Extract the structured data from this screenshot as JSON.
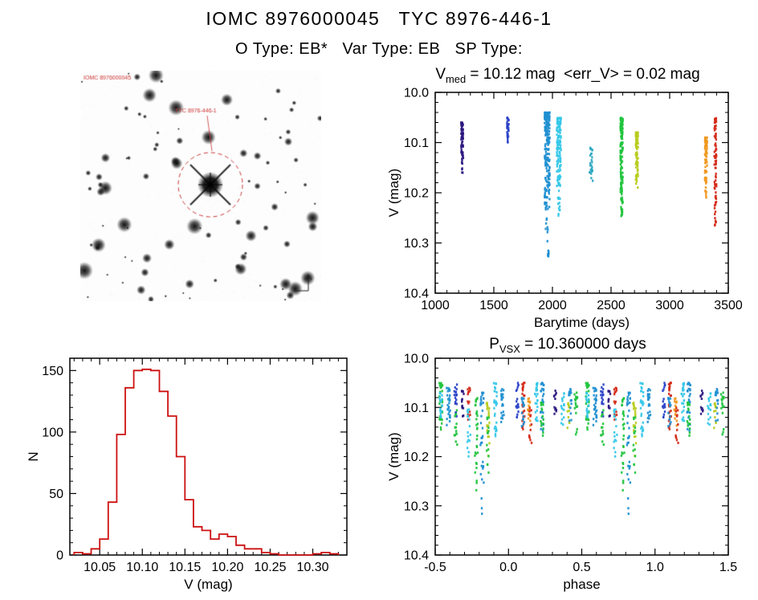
{
  "page": {
    "title": "IOMC 8976000045   TYC 8976-446-1",
    "subtitle": "O Type: EB*   Var Type: EB   SP Type:"
  },
  "finding_chart": {
    "survey_label": "IOMC 8976000045",
    "target_label": "TYC 8976-446-1",
    "circle_color": "#cc3333"
  },
  "palette": {
    "purple": "#2c1880",
    "navy": "#2a41c8",
    "cyan": "#1f8fd0",
    "cyanL": "#35c8e8",
    "teal": "#2fa8c0",
    "green": "#22c43e",
    "yellow": "#b8cc20",
    "orange": "#f09820",
    "red": "#d42a18"
  },
  "chart_data": [
    {
      "id": "lightcurve",
      "type": "scatter",
      "title": {
        "pre": "V",
        "sub": "med",
        "rest": " = 10.12 mag  <err_V> = 0.02 mag"
      },
      "xlabel": "Barytime (days)",
      "ylabel": "V (mag)",
      "xlim": [
        1000,
        3500
      ],
      "yrange": {
        "top": 10.0,
        "bottom": 10.4
      },
      "xticks": [
        1000,
        1500,
        2000,
        2500,
        3000,
        3500
      ],
      "xtick_labels": [
        "1000",
        "1500",
        "2000",
        "2500",
        "3000",
        "3500"
      ],
      "yticks": [
        10.0,
        10.1,
        10.2,
        10.3,
        10.4
      ],
      "ytick_labels": [
        "10.0",
        "10.1",
        "10.2",
        "10.3",
        "10.4"
      ],
      "xminor": 100,
      "yminor": 0.02,
      "clusters": [
        {
          "x": 1230,
          "dx": 9,
          "v0": 10.06,
          "v1": 10.14,
          "n": 60,
          "c": "purple",
          "tail": 10.16
        },
        {
          "x": 1620,
          "dx": 8,
          "v0": 10.05,
          "v1": 10.1,
          "n": 34,
          "c": "navy"
        },
        {
          "x": 1955,
          "dx": 22,
          "v0": 10.04,
          "v1": 10.23,
          "n": 190,
          "c": "cyan",
          "tail": 10.33
        },
        {
          "x": 2055,
          "dx": 18,
          "v0": 10.05,
          "v1": 10.19,
          "n": 130,
          "c": "cyanL",
          "tail": 10.26
        },
        {
          "x": 2330,
          "dx": 14,
          "v0": 10.11,
          "v1": 10.18,
          "n": 26,
          "c": "teal"
        },
        {
          "x": 2590,
          "dx": 11,
          "v0": 10.05,
          "v1": 10.22,
          "n": 130,
          "c": "green",
          "tail": 10.25
        },
        {
          "x": 2720,
          "dx": 10,
          "v0": 10.08,
          "v1": 10.19,
          "n": 85,
          "c": "yellow"
        },
        {
          "x": 3310,
          "dx": 10,
          "v0": 10.09,
          "v1": 10.19,
          "n": 60,
          "c": "orange",
          "tail": 10.21
        },
        {
          "x": 3390,
          "dx": 9,
          "v0": 10.05,
          "v1": 10.24,
          "n": 72,
          "c": "red",
          "tail": 10.27
        }
      ]
    },
    {
      "id": "histogram",
      "type": "hist",
      "xlabel": "V (mag)",
      "ylabel": "N",
      "xlim": [
        10.015,
        10.34
      ],
      "yrange": {
        "top": 160,
        "bottom": 0
      },
      "xticks": [
        10.05,
        10.1,
        10.15,
        10.2,
        10.25,
        10.3
      ],
      "xtick_labels": [
        "10.05",
        "10.10",
        "10.15",
        "10.20",
        "10.25",
        "10.30"
      ],
      "yticks": [
        0,
        50,
        100,
        150
      ],
      "ytick_labels": [
        "0",
        "50",
        "100",
        "150"
      ],
      "xminor": 0.01,
      "yminor": 10,
      "bin_start": 10.02,
      "bin_width": 0.01,
      "values": [
        2,
        1,
        5,
        13,
        43,
        98,
        136,
        150,
        151,
        150,
        133,
        113,
        80,
        45,
        23,
        20,
        13,
        17,
        15,
        8,
        5,
        5,
        2,
        1,
        0,
        0,
        0,
        0,
        1,
        2,
        1
      ],
      "color": "#cc1111"
    },
    {
      "id": "phase",
      "type": "scatter",
      "title": {
        "pre": "P",
        "sub": "VSX",
        "rest": " = 10.360000 days"
      },
      "xlabel": "phase",
      "ylabel": "V (mag)",
      "xlim": [
        -0.5,
        1.5
      ],
      "yrange": {
        "top": 10.0,
        "bottom": 10.4
      },
      "xticks": [
        -0.5,
        0.0,
        0.5,
        1.0,
        1.5
      ],
      "xtick_labels": [
        "-0.5",
        "0.0",
        "0.5",
        "1.0",
        "1.5"
      ],
      "yticks": [
        10.0,
        10.1,
        10.2,
        10.3,
        10.4
      ],
      "ytick_labels": [
        "10.0",
        "10.1",
        "10.2",
        "10.3",
        "10.4"
      ],
      "xminor": 0.1,
      "yminor": 0.02,
      "duplicate_offset": 1.0,
      "clusters": [
        {
          "x": -0.46,
          "dx": 0.012,
          "v0": 10.05,
          "v1": 10.15,
          "n": 32,
          "c": "green"
        },
        {
          "x": -0.46,
          "dx": 0.01,
          "v0": 10.07,
          "v1": 10.12,
          "n": 18,
          "c": "cyanL"
        },
        {
          "x": -0.41,
          "dx": 0.012,
          "v0": 10.06,
          "v1": 10.14,
          "n": 28,
          "c": "cyan"
        },
        {
          "x": -0.36,
          "dx": 0.01,
          "v0": 10.05,
          "v1": 10.12,
          "n": 20,
          "c": "navy"
        },
        {
          "x": -0.36,
          "dx": 0.01,
          "v0": 10.1,
          "v1": 10.18,
          "n": 14,
          "c": "green"
        },
        {
          "x": -0.31,
          "dx": 0.009,
          "v0": 10.06,
          "v1": 10.12,
          "n": 14,
          "c": "purple"
        },
        {
          "x": -0.27,
          "dx": 0.009,
          "v0": 10.06,
          "v1": 10.13,
          "n": 16,
          "c": "red"
        },
        {
          "x": -0.27,
          "dx": 0.011,
          "v0": 10.1,
          "v1": 10.2,
          "n": 18,
          "c": "cyanL"
        },
        {
          "x": -0.22,
          "dx": 0.011,
          "v0": 10.08,
          "v1": 10.24,
          "n": 28,
          "c": "green",
          "tail": 10.27
        },
        {
          "x": -0.18,
          "dx": 0.011,
          "v0": 10.07,
          "v1": 10.26,
          "n": 32,
          "c": "cyan",
          "tail": 10.32
        },
        {
          "x": -0.14,
          "dx": 0.01,
          "v0": 10.09,
          "v1": 10.2,
          "n": 22,
          "c": "yellow"
        },
        {
          "x": -0.14,
          "dx": 0.01,
          "v0": 10.12,
          "v1": 10.25,
          "n": 15,
          "c": "green"
        },
        {
          "x": -0.09,
          "dx": 0.011,
          "v0": 10.05,
          "v1": 10.16,
          "n": 28,
          "c": "cyanL"
        },
        {
          "x": -0.04,
          "dx": 0.01,
          "v0": 10.06,
          "v1": 10.13,
          "n": 22,
          "c": "cyan"
        },
        {
          "x": 0.06,
          "dx": 0.01,
          "v0": 10.05,
          "v1": 10.12,
          "n": 18,
          "c": "navy"
        },
        {
          "x": 0.1,
          "dx": 0.01,
          "v0": 10.05,
          "v1": 10.15,
          "n": 26,
          "c": "red"
        },
        {
          "x": 0.1,
          "dx": 0.01,
          "v0": 10.08,
          "v1": 10.14,
          "n": 16,
          "c": "cyan"
        },
        {
          "x": 0.14,
          "dx": 0.009,
          "v0": 10.08,
          "v1": 10.15,
          "n": 18,
          "c": "orange"
        },
        {
          "x": 0.15,
          "dx": 0.009,
          "v0": 10.1,
          "v1": 10.18,
          "n": 12,
          "c": "red"
        },
        {
          "x": 0.19,
          "dx": 0.01,
          "v0": 10.05,
          "v1": 10.13,
          "n": 26,
          "c": "cyanL"
        },
        {
          "x": 0.23,
          "dx": 0.011,
          "v0": 10.05,
          "v1": 10.15,
          "n": 30,
          "c": "cyan"
        },
        {
          "x": 0.23,
          "dx": 0.01,
          "v0": 10.09,
          "v1": 10.16,
          "n": 16,
          "c": "green"
        },
        {
          "x": 0.32,
          "dx": 0.009,
          "v0": 10.06,
          "v1": 10.12,
          "n": 12,
          "c": "purple"
        },
        {
          "x": 0.37,
          "dx": 0.01,
          "v0": 10.07,
          "v1": 10.14,
          "n": 18,
          "c": "cyanL"
        },
        {
          "x": 0.41,
          "dx": 0.009,
          "v0": 10.09,
          "v1": 10.15,
          "n": 12,
          "c": "yellow"
        },
        {
          "x": 0.42,
          "dx": 0.01,
          "v0": 10.06,
          "v1": 10.13,
          "n": 16,
          "c": "cyan"
        },
        {
          "x": 0.46,
          "dx": 0.01,
          "v0": 10.07,
          "v1": 10.16,
          "n": 18,
          "c": "green"
        }
      ]
    }
  ]
}
